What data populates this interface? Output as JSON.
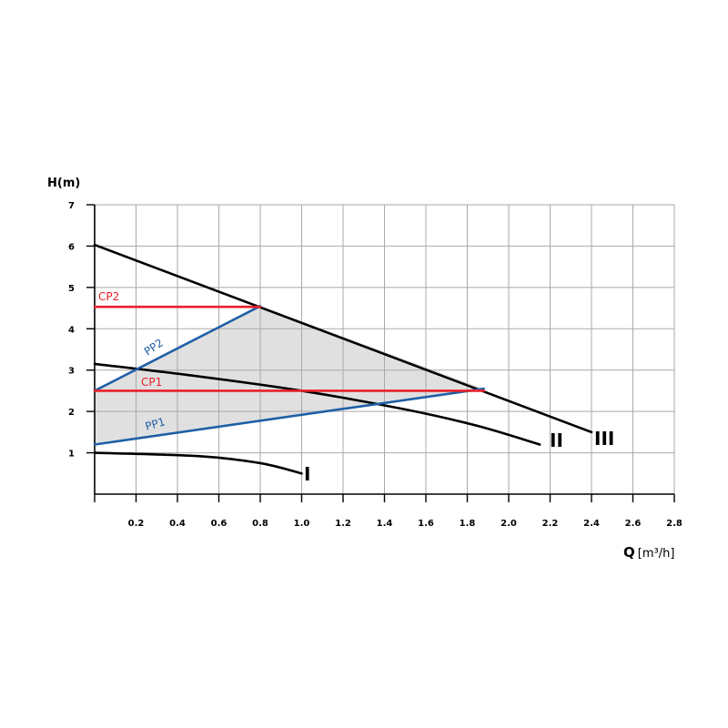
{
  "chart_data": {
    "type": "line",
    "ylabel": "H(m)",
    "xlabel_bold": "Q",
    "xlabel_rest": "[m³/h]",
    "xlim": [
      0,
      2.8
    ],
    "ylim": [
      0,
      7
    ],
    "grid": true,
    "x_ticks": [
      {
        "v": 0.2,
        "label": "0.2"
      },
      {
        "v": 0.4,
        "label": "0.4"
      },
      {
        "v": 0.6,
        "label": "0.6"
      },
      {
        "v": 0.8,
        "label": "0.8"
      },
      {
        "v": 1.0,
        "label": "1.0"
      },
      {
        "v": 1.2,
        "label": "1.2"
      },
      {
        "v": 1.4,
        "label": "1.4"
      },
      {
        "v": 1.6,
        "label": "1.6"
      },
      {
        "v": 1.8,
        "label": "1.8"
      },
      {
        "v": 2.0,
        "label": "2.0"
      },
      {
        "v": 2.2,
        "label": "2.2"
      },
      {
        "v": 2.4,
        "label": "2.4"
      },
      {
        "v": 2.6,
        "label": "2.6"
      },
      {
        "v": 2.8,
        "label": "2.8"
      }
    ],
    "y_ticks": [
      {
        "v": 1,
        "label": "1"
      },
      {
        "v": 2,
        "label": "2"
      },
      {
        "v": 3,
        "label": "3"
      },
      {
        "v": 4,
        "label": "4"
      },
      {
        "v": 5,
        "label": "5"
      },
      {
        "v": 6,
        "label": "6"
      },
      {
        "v": 7,
        "label": "7"
      }
    ],
    "shaded_region": [
      [
        0,
        1.2
      ],
      [
        0,
        2.5
      ],
      [
        0.8,
        4.55
      ],
      [
        1.88,
        2.55
      ]
    ],
    "speed_curves": [
      {
        "name": "I",
        "points": [
          [
            0,
            1.0
          ],
          [
            0.5,
            0.92
          ],
          [
            0.8,
            0.75
          ],
          [
            1.0,
            0.5
          ]
        ]
      },
      {
        "name": "II",
        "points": [
          [
            0,
            3.15
          ],
          [
            0.5,
            2.85
          ],
          [
            1.0,
            2.5
          ],
          [
            1.5,
            2.05
          ],
          [
            1.85,
            1.65
          ],
          [
            2.15,
            1.2
          ]
        ]
      },
      {
        "name": "III",
        "points": [
          [
            0,
            6.03
          ],
          [
            2.4,
            1.5
          ]
        ]
      }
    ],
    "control_curves": [
      {
        "name": "PP1",
        "color": "#1f5fa6",
        "points": [
          [
            0,
            1.2
          ],
          [
            1.88,
            2.55
          ]
        ]
      },
      {
        "name": "PP2",
        "color": "#1f5fa6",
        "points": [
          [
            0,
            2.5
          ],
          [
            0.8,
            4.55
          ]
        ]
      },
      {
        "name": "CP1",
        "color": "#e8202a",
        "points": [
          [
            0,
            2.5
          ],
          [
            1.88,
            2.5
          ]
        ]
      },
      {
        "name": "CP2",
        "color": "#e8202a",
        "points": [
          [
            0,
            4.53
          ],
          [
            0.8,
            4.53
          ]
        ]
      }
    ],
    "colors": {
      "shade": "#e0e0e0",
      "grid": "#a9a9a9",
      "speed": "#000000",
      "proportional": "#1f5fa6",
      "constant": "#e8202a"
    }
  }
}
